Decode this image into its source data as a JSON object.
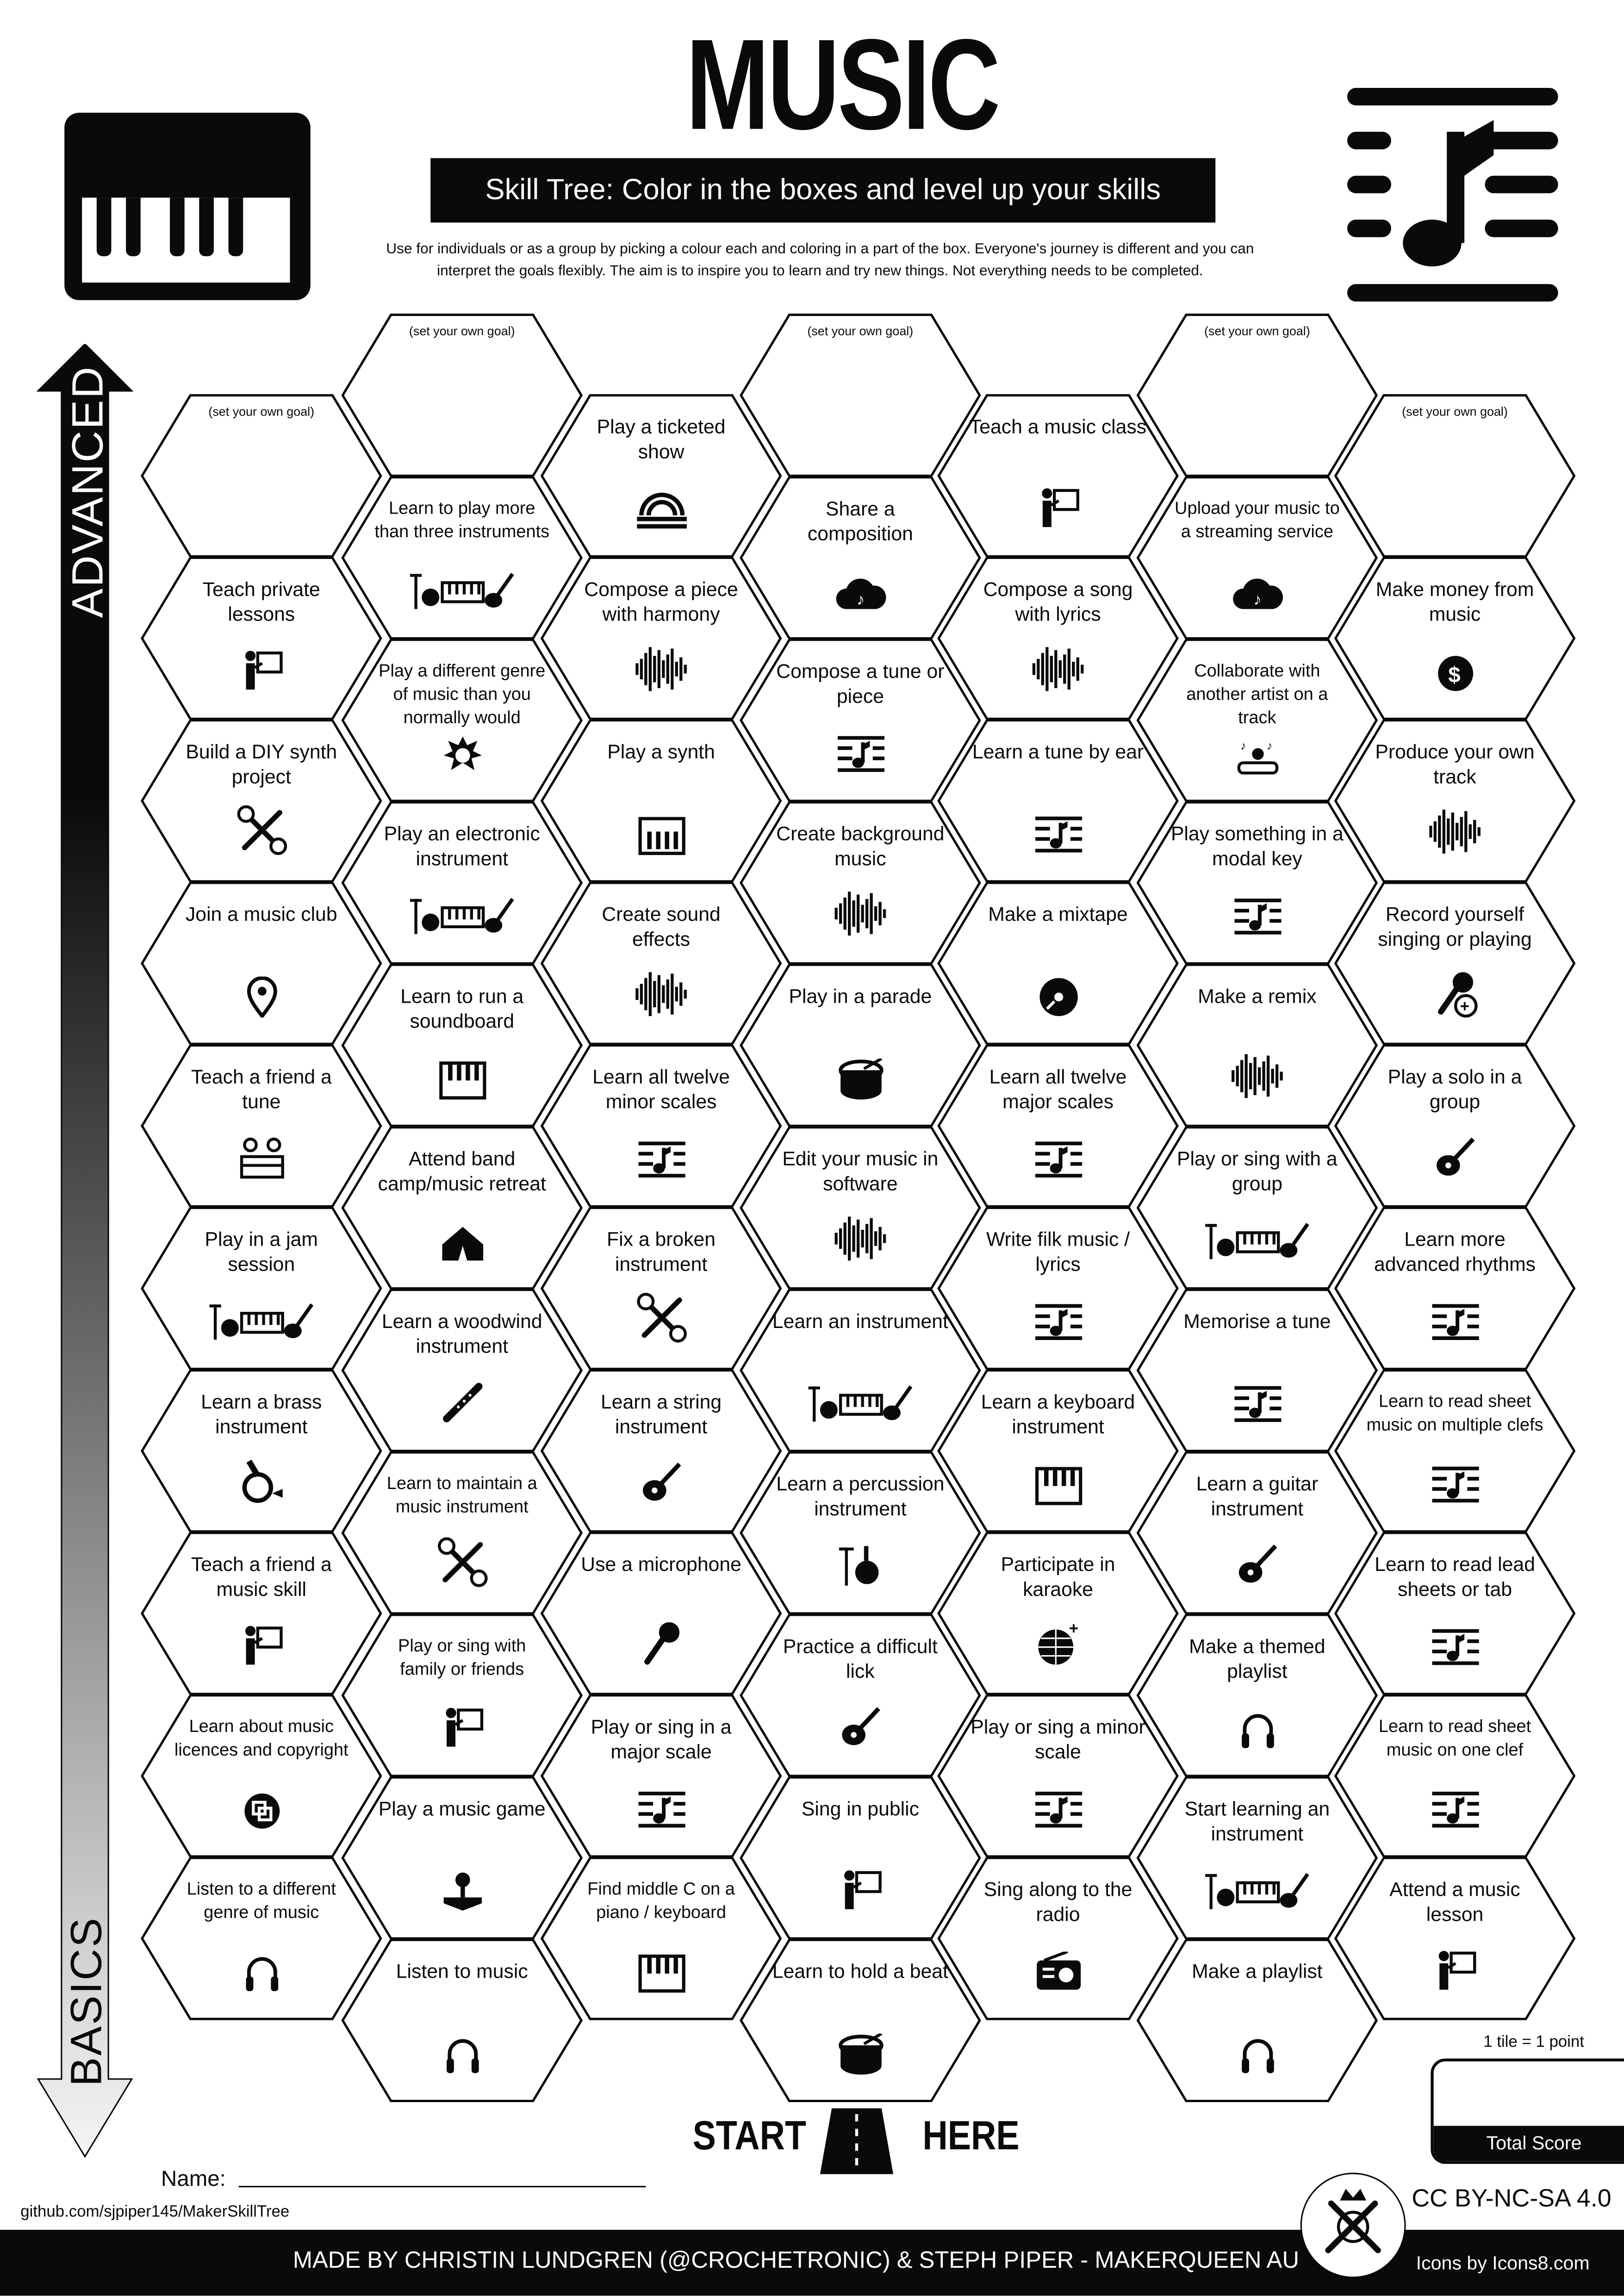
{
  "header": {
    "title": "MUSIC",
    "subtitle": "Skill Tree:  Color in the boxes and level up your skills",
    "description_line1": "Use for individuals or as a group by picking a colour each and coloring in a part of the box.  Everyone's journey is different and you can",
    "description_line2": "interpret the goals flexibly.  The aim is to inspire you to learn and try new things. Not everything needs to be completed.",
    "left_icon": "piano-keyboard-icon",
    "right_icon": "music-staff-note-icon"
  },
  "axis": {
    "top_label": "ADVANCED",
    "bottom_label": "BASICS"
  },
  "columns": [
    {
      "tiles": [
        {
          "goal": "(set your own goal)"
        },
        {
          "text": "Teach private lessons",
          "icon": "teacher"
        },
        {
          "text": "Build a DIY synth project",
          "icon": "tools"
        },
        {
          "text": "Join a music club",
          "icon": "pin"
        },
        {
          "text": "Teach a friend a tune",
          "icon": "duo"
        },
        {
          "text": "Play in a jam session",
          "icon": "instruments"
        },
        {
          "text": "Learn a brass instrument",
          "icon": "horn"
        },
        {
          "text": "Teach a friend a music skill",
          "icon": "teacher"
        },
        {
          "text": "Learn about music licences and copyright",
          "icon": "license"
        },
        {
          "text": "Listen to a different genre of music",
          "icon": "headphones"
        }
      ]
    },
    {
      "tiles": [
        {
          "goal": "(set your own goal)"
        },
        {
          "text": "Learn to play more than three instruments",
          "icon": "instruments"
        },
        {
          "text": "Play a different genre of music than you normally would",
          "icon": "punk"
        },
        {
          "text": "Play an electronic instrument",
          "icon": "instruments"
        },
        {
          "text": "Learn to run a soundboard",
          "icon": "soundboard"
        },
        {
          "text": "Attend band camp/music retreat",
          "icon": "tent"
        },
        {
          "text": "Learn a woodwind instrument",
          "icon": "flute"
        },
        {
          "text": "Learn to maintain a music instrument",
          "icon": "tools"
        },
        {
          "text": "Play or sing with family or friends",
          "icon": "teacher"
        },
        {
          "text": "Play a music game",
          "icon": "joystick"
        },
        {
          "text": "Listen to music",
          "icon": "headphones"
        }
      ]
    },
    {
      "tiles": [
        {
          "text": "Play a ticketed show",
          "icon": "stage"
        },
        {
          "text": "Compose a piece with harmony",
          "icon": "wave"
        },
        {
          "text": "Play a synth",
          "icon": "synth"
        },
        {
          "text": "Create sound effects",
          "icon": "wave"
        },
        {
          "text": "Learn all twelve minor scales",
          "icon": "sheet"
        },
        {
          "text": "Fix a broken instrument",
          "icon": "tools"
        },
        {
          "text": "Learn a string instrument",
          "icon": "violin"
        },
        {
          "text": "Use a microphone",
          "icon": "mic"
        },
        {
          "text": "Play or sing in a major scale",
          "icon": "sheet"
        },
        {
          "text": "Find middle C on a piano / keyboard",
          "icon": "keyboard"
        }
      ]
    },
    {
      "tiles": [
        {
          "goal": "(set your own goal)"
        },
        {
          "text": "Share a composition",
          "icon": "cloud"
        },
        {
          "text": "Compose a tune or piece",
          "icon": "sheet"
        },
        {
          "text": "Create background music",
          "icon": "wave"
        },
        {
          "text": "Play in a parade",
          "icon": "drum"
        },
        {
          "text": "Edit your music in software",
          "icon": "wave"
        },
        {
          "text": "Learn an instrument",
          "icon": "instruments"
        },
        {
          "text": "Learn a percussion instrument",
          "icon": "drumkit"
        },
        {
          "text": "Practice a difficult lick",
          "icon": "guitar"
        },
        {
          "text": "Sing in public",
          "icon": "teacher"
        },
        {
          "text": "Learn to hold a beat",
          "icon": "drum"
        }
      ]
    },
    {
      "tiles": [
        {
          "text": "Teach a music class",
          "icon": "teacher"
        },
        {
          "text": "Compose a song with lyrics",
          "icon": "wave"
        },
        {
          "text": "Learn a tune by ear",
          "icon": "sheet"
        },
        {
          "text": "Make a mixtape",
          "icon": "disc"
        },
        {
          "text": "Learn all twelve major scales",
          "icon": "sheet"
        },
        {
          "text": "Write filk music / lyrics",
          "icon": "sheet"
        },
        {
          "text": "Learn a keyboard instrument",
          "icon": "keyboard"
        },
        {
          "text": "Participate in karaoke",
          "icon": "discoball"
        },
        {
          "text": "Play or sing a minor scale",
          "icon": "sheet"
        },
        {
          "text": "Sing along to the radio",
          "icon": "radio"
        }
      ]
    },
    {
      "tiles": [
        {
          "goal": "(set your own goal)"
        },
        {
          "text": "Upload your music to a streaming service",
          "icon": "cloud"
        },
        {
          "text": "Collaborate with another artist on a track",
          "icon": "collab"
        },
        {
          "text": "Play something in a modal key",
          "icon": "sheet"
        },
        {
          "text": "Make a remix",
          "icon": "wave"
        },
        {
          "text": "Play or sing with a group",
          "icon": "instruments"
        },
        {
          "text": "Memorise a tune",
          "icon": "sheet"
        },
        {
          "text": "Learn a guitar instrument",
          "icon": "guitar"
        },
        {
          "text": "Make a themed playlist",
          "icon": "headphones"
        },
        {
          "text": "Start learning an instrument",
          "icon": "instruments"
        },
        {
          "text": "Make a playlist",
          "icon": "headphones"
        }
      ]
    },
    {
      "tiles": [
        {
          "goal": "(set your own goal)"
        },
        {
          "text": "Make money from music",
          "icon": "dollar"
        },
        {
          "text": "Produce your own track",
          "icon": "wave"
        },
        {
          "text": "Record yourself singing or playing",
          "icon": "micplus"
        },
        {
          "text": "Play a solo in a group",
          "icon": "guitar"
        },
        {
          "text": "Learn more advanced rhythms",
          "icon": "sheet"
        },
        {
          "text": "Learn to read sheet music on multiple clefs",
          "icon": "sheet"
        },
        {
          "text": "Learn to read lead sheets or tab",
          "icon": "sheet"
        },
        {
          "text": "Learn to read sheet music on one clef",
          "icon": "sheet"
        },
        {
          "text": "Attend a music lesson",
          "icon": "teacher"
        }
      ]
    }
  ],
  "start": {
    "left": "START",
    "right": "HERE"
  },
  "name_label": "Name:",
  "github": "github.com/sjpiper145/MakerSkillTree",
  "score": {
    "note": "1 tile = 1 point",
    "label": "Total Score"
  },
  "license": "CC BY-NC-SA 4.0",
  "footer": {
    "credits": "MADE BY CHRISTIN LUNDGREN (@CROCHETRONIC) & STEPH PIPER  -  MAKERQUEEN AU",
    "icons": "Icons by Icons8.com"
  },
  "colors": {
    "ink": "#0a0a0c",
    "paper": "#ffffff"
  }
}
